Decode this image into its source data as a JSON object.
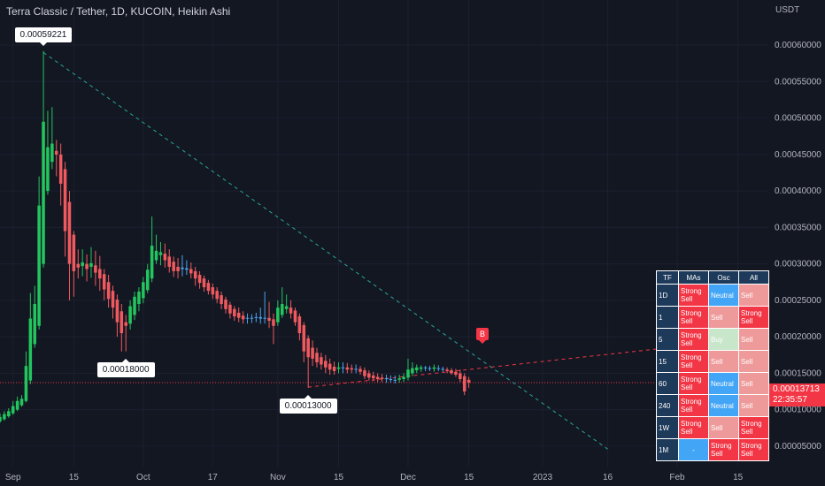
{
  "header": {
    "title": "Terra Classic / Tether, 1D, KUCOIN, Heikin Ashi",
    "unit": "USDT"
  },
  "price_tag": {
    "price": "0.00013713",
    "countdown": "22:35:57"
  },
  "signal_marker": "B",
  "callouts": [
    {
      "label": "0.00059221",
      "x": "Sep 8",
      "y": 0.00059221,
      "pos": "above"
    },
    {
      "label": "0.00018000",
      "x": "Sep 27",
      "y": 0.00018,
      "pos": "below"
    },
    {
      "label": "0.00013000",
      "x": "Nov 8",
      "y": 0.00013,
      "pos": "below"
    }
  ],
  "colors": {
    "up": "#22c55e",
    "down": "#f05a5f",
    "neutral": "#4aa3f0",
    "teal_line": "#26a69a",
    "red_line": "#f23645",
    "strong_sell": "#f23645",
    "sell": "#ef9a9a",
    "buy": "#c8e6c9",
    "neutral_cell": "#42a5f5"
  },
  "ta_table": {
    "headers": [
      "TF",
      "MAs",
      "Osc",
      "All"
    ],
    "rows": [
      {
        "tf": "1D",
        "mas": "Strong Sell",
        "osc": "Neutral",
        "all": "Sell"
      },
      {
        "tf": "1",
        "mas": "Strong Sell",
        "osc": "Sell",
        "all": "Strong Sell"
      },
      {
        "tf": "5",
        "mas": "Strong Sell",
        "osc": "Buy",
        "all": "Sell"
      },
      {
        "tf": "15",
        "mas": "Strong Sell",
        "osc": "Sell",
        "all": "Sell"
      },
      {
        "tf": "60",
        "mas": "Strong Sell",
        "osc": "Neutral",
        "all": "Sell"
      },
      {
        "tf": "240",
        "mas": "Strong Sell",
        "osc": "Neutral",
        "all": "Sell"
      },
      {
        "tf": "1W",
        "mas": "Strong Sell",
        "osc": "Sell",
        "all": "Strong Sell"
      },
      {
        "tf": "1M",
        "mas": "-",
        "osc": "Strong Sell",
        "all": "Strong Sell"
      }
    ]
  },
  "chart_data": {
    "type": "candlestick",
    "x_axis": {
      "range": [
        "Aug 29",
        "Feb 22"
      ],
      "ticks": [
        {
          "label": "Sep",
          "date": "Sep 1"
        },
        {
          "label": "15",
          "date": "Sep 15"
        },
        {
          "label": "Oct",
          "date": "Oct 1"
        },
        {
          "label": "17",
          "date": "Oct 17"
        },
        {
          "label": "Nov",
          "date": "Nov 1"
        },
        {
          "label": "15",
          "date": "Nov 15"
        },
        {
          "label": "Dec",
          "date": "Dec 1"
        },
        {
          "label": "15",
          "date": "Dec 15"
        },
        {
          "label": "2023",
          "date": "Jan 1"
        },
        {
          "label": "16",
          "date": "Jan 16"
        },
        {
          "label": "Feb",
          "date": "Feb 1"
        },
        {
          "label": "15",
          "date": "Feb 15"
        }
      ]
    },
    "y_axis": {
      "range": [
        2.2e-05,
        0.000662
      ],
      "ticks": [
        "0.00005000",
        "0.00010000",
        "0.00015000",
        "0.00020000",
        "0.00025000",
        "0.00030000",
        "0.00035000",
        "0.00040000",
        "0.00045000",
        "0.00050000",
        "0.00055000",
        "0.00060000"
      ]
    },
    "current_price": 0.00013713,
    "trendlines": [
      {
        "name": "descending",
        "from": [
          "Sep 8",
          0.00059
        ],
        "to": [
          "Jan 16",
          4.6e-05
        ],
        "color": "#26a69a"
      },
      {
        "name": "ascending",
        "from": [
          "Nov 8",
          0.000131
        ],
        "to": [
          "Feb 22",
          0.0002
        ],
        "color": "#f23645"
      }
    ],
    "candles": [
      {
        "d": "Aug 29",
        "o": 8.4e-05,
        "h": 9.5e-05,
        "l": 8.2e-05,
        "c": 9e-05
      },
      {
        "d": "Aug 30",
        "o": 8.7e-05,
        "h": 9.8e-05,
        "l": 8.5e-05,
        "c": 9.4e-05
      },
      {
        "d": "Aug 31",
        "o": 9.1e-05,
        "h": 0.000102,
        "l": 8.9e-05,
        "c": 9.8e-05
      },
      {
        "d": "Sep 1",
        "o": 9.5e-05,
        "h": 0.000112,
        "l": 9.3e-05,
        "c": 0.000105
      },
      {
        "d": "Sep 2",
        "o": 0.0001,
        "h": 0.000118,
        "l": 9.8e-05,
        "c": 0.000112
      },
      {
        "d": "Sep 3",
        "o": 0.000106,
        "h": 0.00012,
        "l": 0.000104,
        "c": 0.000115
      },
      {
        "d": "Sep 4",
        "o": 0.000112,
        "h": 0.00018,
        "l": 0.00011,
        "c": 0.00016
      },
      {
        "d": "Sep 5",
        "o": 0.00014,
        "h": 0.00026,
        "l": 0.000135,
        "c": 0.000225
      },
      {
        "d": "Sep 6",
        "o": 0.00019,
        "h": 0.00027,
        "l": 0.000185,
        "c": 0.000245
      },
      {
        "d": "Sep 7",
        "o": 0.000215,
        "h": 0.00042,
        "l": 0.00021,
        "c": 0.00038
      },
      {
        "d": "Sep 8",
        "o": 0.0003,
        "h": 0.000592,
        "l": 0.000295,
        "c": 0.000495
      },
      {
        "d": "Sep 9",
        "o": 0.0004,
        "h": 0.00051,
        "l": 0.000395,
        "c": 0.00046
      },
      {
        "d": "Sep 10",
        "o": 0.00044,
        "h": 0.000515,
        "l": 0.00043,
        "c": 0.000465
      },
      {
        "d": "Sep 11",
        "o": 0.000455,
        "h": 0.00047,
        "l": 0.00042,
        "c": 0.00045
      },
      {
        "d": "Sep 12",
        "o": 0.00045,
        "h": 0.000465,
        "l": 0.00038,
        "c": 0.00041
      },
      {
        "d": "Sep 13",
        "o": 0.00043,
        "h": 0.00044,
        "l": 0.00031,
        "c": 0.000345
      },
      {
        "d": "Sep 14",
        "o": 0.000385,
        "h": 0.0004,
        "l": 0.00025,
        "c": 0.0003
      },
      {
        "d": "Sep 15",
        "o": 0.00034,
        "h": 0.000345,
        "l": 0.000255,
        "c": 0.00029
      },
      {
        "d": "Sep 16",
        "o": 0.0003,
        "h": 0.00032,
        "l": 0.00028,
        "c": 0.000295
      },
      {
        "d": "Sep 17",
        "o": 0.000297,
        "h": 0.00032,
        "l": 0.000283,
        "c": 0.000302
      },
      {
        "d": "Sep 18",
        "o": 0.0003,
        "h": 0.000313,
        "l": 0.000276,
        "c": 0.000293
      },
      {
        "d": "Sep 19",
        "o": 0.000296,
        "h": 0.000323,
        "l": 0.000281,
        "c": 0.000301
      },
      {
        "d": "Sep 20",
        "o": 0.000298,
        "h": 0.000318,
        "l": 0.00027,
        "c": 0.000288
      },
      {
        "d": "Sep 21",
        "o": 0.000293,
        "h": 0.000311,
        "l": 0.000263,
        "c": 0.00028
      },
      {
        "d": "Sep 22",
        "o": 0.000286,
        "h": 0.000293,
        "l": 0.00025,
        "c": 0.000265
      },
      {
        "d": "Sep 23",
        "o": 0.000275,
        "h": 0.000285,
        "l": 0.00024,
        "c": 0.000252
      },
      {
        "d": "Sep 24",
        "o": 0.000263,
        "h": 0.00027,
        "l": 0.000225,
        "c": 0.00024
      },
      {
        "d": "Sep 25",
        "o": 0.000251,
        "h": 0.000258,
        "l": 0.0002,
        "c": 0.00022
      },
      {
        "d": "Sep 26",
        "o": 0.000235,
        "h": 0.000245,
        "l": 0.00018,
        "c": 0.000205
      },
      {
        "d": "Sep 27",
        "o": 0.00022,
        "h": 0.00023,
        "l": 0.00018,
        "c": 0.000215
      },
      {
        "d": "Sep 28",
        "o": 0.000218,
        "h": 0.00025,
        "l": 0.00021,
        "c": 0.000242
      },
      {
        "d": "Sep 29",
        "o": 0.00023,
        "h": 0.000262,
        "l": 0.000223,
        "c": 0.000255
      },
      {
        "d": "Sep 30",
        "o": 0.000245,
        "h": 0.000268,
        "l": 0.000235,
        "c": 0.000262
      },
      {
        "d": "Oct 1",
        "o": 0.000253,
        "h": 0.000282,
        "l": 0.000246,
        "c": 0.000275
      },
      {
        "d": "Oct 2",
        "o": 0.000264,
        "h": 0.0003,
        "l": 0.00026,
        "c": 0.000292
      },
      {
        "d": "Oct 3",
        "o": 0.00028,
        "h": 0.000365,
        "l": 0.000275,
        "c": 0.000325
      },
      {
        "d": "Oct 4",
        "o": 0.000305,
        "h": 0.00034,
        "l": 0.0003,
        "c": 0.000318
      },
      {
        "d": "Oct 5",
        "o": 0.000312,
        "h": 0.00033,
        "l": 0.000298,
        "c": 0.000316
      },
      {
        "d": "Oct 6",
        "o": 0.000314,
        "h": 0.000328,
        "l": 0.000295,
        "c": 0.000305
      },
      {
        "d": "Oct 7",
        "o": 0.00031,
        "h": 0.00032,
        "l": 0.000288,
        "c": 0.000296
      },
      {
        "d": "Oct 8",
        "o": 0.000303,
        "h": 0.00031,
        "l": 0.000282,
        "c": 0.00029
      },
      {
        "d": "Oct 9",
        "o": 0.000296,
        "h": 0.000308,
        "l": 0.00028,
        "c": 0.00029
      },
      {
        "d": "Oct 10",
        "o": 0.000293,
        "h": 0.000312,
        "l": 0.000283,
        "c": 0.000295
      },
      {
        "d": "Oct 11",
        "o": 0.000294,
        "h": 0.000305,
        "l": 0.000285,
        "c": 0.000292
      },
      {
        "d": "Oct 12",
        "o": 0.000293,
        "h": 0.000302,
        "l": 0.00028,
        "c": 0.000287
      },
      {
        "d": "Oct 13",
        "o": 0.00029,
        "h": 0.000296,
        "l": 0.00027,
        "c": 0.00028
      },
      {
        "d": "Oct 14",
        "o": 0.000285,
        "h": 0.00029,
        "l": 0.000266,
        "c": 0.000274
      },
      {
        "d": "Oct 15",
        "o": 0.00028,
        "h": 0.000284,
        "l": 0.000262,
        "c": 0.000268
      },
      {
        "d": "Oct 16",
        "o": 0.000274,
        "h": 0.000278,
        "l": 0.000258,
        "c": 0.000263
      },
      {
        "d": "Oct 17",
        "o": 0.000268,
        "h": 0.000273,
        "l": 0.000252,
        "c": 0.000258
      },
      {
        "d": "Oct 18",
        "o": 0.000263,
        "h": 0.000268,
        "l": 0.000246,
        "c": 0.000252
      },
      {
        "d": "Oct 19",
        "o": 0.000257,
        "h": 0.000262,
        "l": 0.000238,
        "c": 0.000245
      },
      {
        "d": "Oct 20",
        "o": 0.000251,
        "h": 0.000255,
        "l": 0.000232,
        "c": 0.000238
      },
      {
        "d": "Oct 21",
        "o": 0.000244,
        "h": 0.000248,
        "l": 0.000225,
        "c": 0.000232
      },
      {
        "d": "Oct 22",
        "o": 0.000238,
        "h": 0.000242,
        "l": 0.000222,
        "c": 0.000228
      },
      {
        "d": "Oct 23",
        "o": 0.000233,
        "h": 0.00024,
        "l": 0.00022,
        "c": 0.000226
      },
      {
        "d": "Oct 24",
        "o": 0.000229,
        "h": 0.000235,
        "l": 0.000218,
        "c": 0.000224
      },
      {
        "d": "Oct 25",
        "o": 0.000226,
        "h": 0.000232,
        "l": 0.000218,
        "c": 0.000225
      },
      {
        "d": "Oct 26",
        "o": 0.000225,
        "h": 0.000231,
        "l": 0.000219,
        "c": 0.000226
      },
      {
        "d": "Oct 27",
        "o": 0.000226,
        "h": 0.000233,
        "l": 0.00022,
        "c": 0.000227
      },
      {
        "d": "Oct 28",
        "o": 0.000227,
        "h": 0.00024,
        "l": 0.000218,
        "c": 0.000225
      },
      {
        "d": "Oct 29",
        "o": 0.000226,
        "h": 0.000262,
        "l": 0.000218,
        "c": 0.000225
      },
      {
        "d": "Oct 30",
        "o": 0.000226,
        "h": 0.000248,
        "l": 0.000212,
        "c": 0.000222
      },
      {
        "d": "Oct 31",
        "o": 0.000224,
        "h": 0.000232,
        "l": 0.00019,
        "c": 0.000215
      },
      {
        "d": "Nov 1",
        "o": 0.00022,
        "h": 0.00025,
        "l": 0.000215,
        "c": 0.00024
      },
      {
        "d": "Nov 2",
        "o": 0.00023,
        "h": 0.000268,
        "l": 0.000226,
        "c": 0.000245
      },
      {
        "d": "Nov 3",
        "o": 0.000238,
        "h": 0.000258,
        "l": 0.000232,
        "c": 0.000242
      },
      {
        "d": "Nov 4",
        "o": 0.00024,
        "h": 0.00025,
        "l": 0.000225,
        "c": 0.000232
      },
      {
        "d": "Nov 5",
        "o": 0.000236,
        "h": 0.00024,
        "l": 0.000215,
        "c": 0.00022
      },
      {
        "d": "Nov 6",
        "o": 0.000228,
        "h": 0.000232,
        "l": 0.000195,
        "c": 0.000205
      },
      {
        "d": "Nov 7",
        "o": 0.000216,
        "h": 0.00022,
        "l": 0.000165,
        "c": 0.00018
      },
      {
        "d": "Nov 8",
        "o": 0.000198,
        "h": 0.000202,
        "l": 0.00013,
        "c": 0.000172
      },
      {
        "d": "Nov 9",
        "o": 0.000185,
        "h": 0.000195,
        "l": 0.00016,
        "c": 0.00017
      },
      {
        "d": "Nov 10",
        "o": 0.000178,
        "h": 0.000185,
        "l": 0.000158,
        "c": 0.000165
      },
      {
        "d": "Nov 11",
        "o": 0.000172,
        "h": 0.000178,
        "l": 0.000155,
        "c": 0.000162
      },
      {
        "d": "Nov 12",
        "o": 0.000167,
        "h": 0.000175,
        "l": 0.00015,
        "c": 0.000158
      },
      {
        "d": "Nov 13",
        "o": 0.000163,
        "h": 0.00017,
        "l": 0.000148,
        "c": 0.000155
      },
      {
        "d": "Nov 14",
        "o": 0.000159,
        "h": 0.000166,
        "l": 0.000148,
        "c": 0.000153
      },
      {
        "d": "Nov 15",
        "o": 0.000156,
        "h": 0.000165,
        "l": 0.00015,
        "c": 0.000158
      },
      {
        "d": "Nov 16",
        "o": 0.000157,
        "h": 0.000165,
        "l": 0.00015,
        "c": 0.000158
      },
      {
        "d": "Nov 17",
        "o": 0.000158,
        "h": 0.000164,
        "l": 0.00015,
        "c": 0.000155
      },
      {
        "d": "Nov 18",
        "o": 0.000157,
        "h": 0.000162,
        "l": 0.00015,
        "c": 0.000155
      },
      {
        "d": "Nov 19",
        "o": 0.000156,
        "h": 0.000162,
        "l": 0.00015,
        "c": 0.000156
      },
      {
        "d": "Nov 20",
        "o": 0.000156,
        "h": 0.00016,
        "l": 0.000148,
        "c": 0.000152
      },
      {
        "d": "Nov 21",
        "o": 0.000154,
        "h": 0.000158,
        "l": 0.000142,
        "c": 0.000146
      },
      {
        "d": "Nov 22",
        "o": 0.00015,
        "h": 0.000154,
        "l": 0.00014,
        "c": 0.000144
      },
      {
        "d": "Nov 23",
        "o": 0.000147,
        "h": 0.000152,
        "l": 0.000139,
        "c": 0.000143
      },
      {
        "d": "Nov 24",
        "o": 0.000145,
        "h": 0.00015,
        "l": 0.000138,
        "c": 0.000142
      },
      {
        "d": "Nov 25",
        "o": 0.000144,
        "h": 0.000149,
        "l": 0.000138,
        "c": 0.000142
      },
      {
        "d": "Nov 26",
        "o": 0.000143,
        "h": 0.000148,
        "l": 0.000137,
        "c": 0.000142
      },
      {
        "d": "Nov 27",
        "o": 0.000142,
        "h": 0.000147,
        "l": 0.000137,
        "c": 0.000141
      },
      {
        "d": "Nov 28",
        "o": 0.000141,
        "h": 0.000147,
        "l": 0.000136,
        "c": 0.000141
      },
      {
        "d": "Nov 29",
        "o": 0.000141,
        "h": 0.000148,
        "l": 0.000137,
        "c": 0.000143
      },
      {
        "d": "Nov 30",
        "o": 0.000142,
        "h": 0.00015,
        "l": 0.000138,
        "c": 0.000145
      },
      {
        "d": "Dec 1",
        "o": 0.000144,
        "h": 0.00017,
        "l": 0.00014,
        "c": 0.000155
      },
      {
        "d": "Dec 2",
        "o": 0.00015,
        "h": 0.000165,
        "l": 0.000146,
        "c": 0.000157
      },
      {
        "d": "Dec 3",
        "o": 0.000154,
        "h": 0.000162,
        "l": 0.00015,
        "c": 0.000158
      },
      {
        "d": "Dec 4",
        "o": 0.000156,
        "h": 0.000161,
        "l": 0.000152,
        "c": 0.000158
      },
      {
        "d": "Dec 5",
        "o": 0.000157,
        "h": 0.00016,
        "l": 0.000153,
        "c": 0.000158
      },
      {
        "d": "Dec 6",
        "o": 0.000157,
        "h": 0.00016,
        "l": 0.000153,
        "c": 0.000156
      },
      {
        "d": "Dec 7",
        "o": 0.000156,
        "h": 0.000162,
        "l": 0.000152,
        "c": 0.000158
      },
      {
        "d": "Dec 8",
        "o": 0.000157,
        "h": 0.000161,
        "l": 0.000153,
        "c": 0.000156
      },
      {
        "d": "Dec 9",
        "o": 0.000156,
        "h": 0.000159,
        "l": 0.000152,
        "c": 0.000155
      },
      {
        "d": "Dec 10",
        "o": 0.000155,
        "h": 0.000158,
        "l": 0.00015,
        "c": 0.000153
      },
      {
        "d": "Dec 11",
        "o": 0.000154,
        "h": 0.000157,
        "l": 0.000148,
        "c": 0.00015
      },
      {
        "d": "Dec 12",
        "o": 0.000152,
        "h": 0.000156,
        "l": 0.000145,
        "c": 0.000148
      },
      {
        "d": "Dec 13",
        "o": 0.00015,
        "h": 0.000155,
        "l": 0.000138,
        "c": 0.000142
      },
      {
        "d": "Dec 14",
        "o": 0.000146,
        "h": 0.00015,
        "l": 0.00012,
        "c": 0.000125
      },
      {
        "d": "Dec 15",
        "o": 0.000141,
        "h": 0.000145,
        "l": 0.00013,
        "c": 0.000137
      }
    ]
  }
}
